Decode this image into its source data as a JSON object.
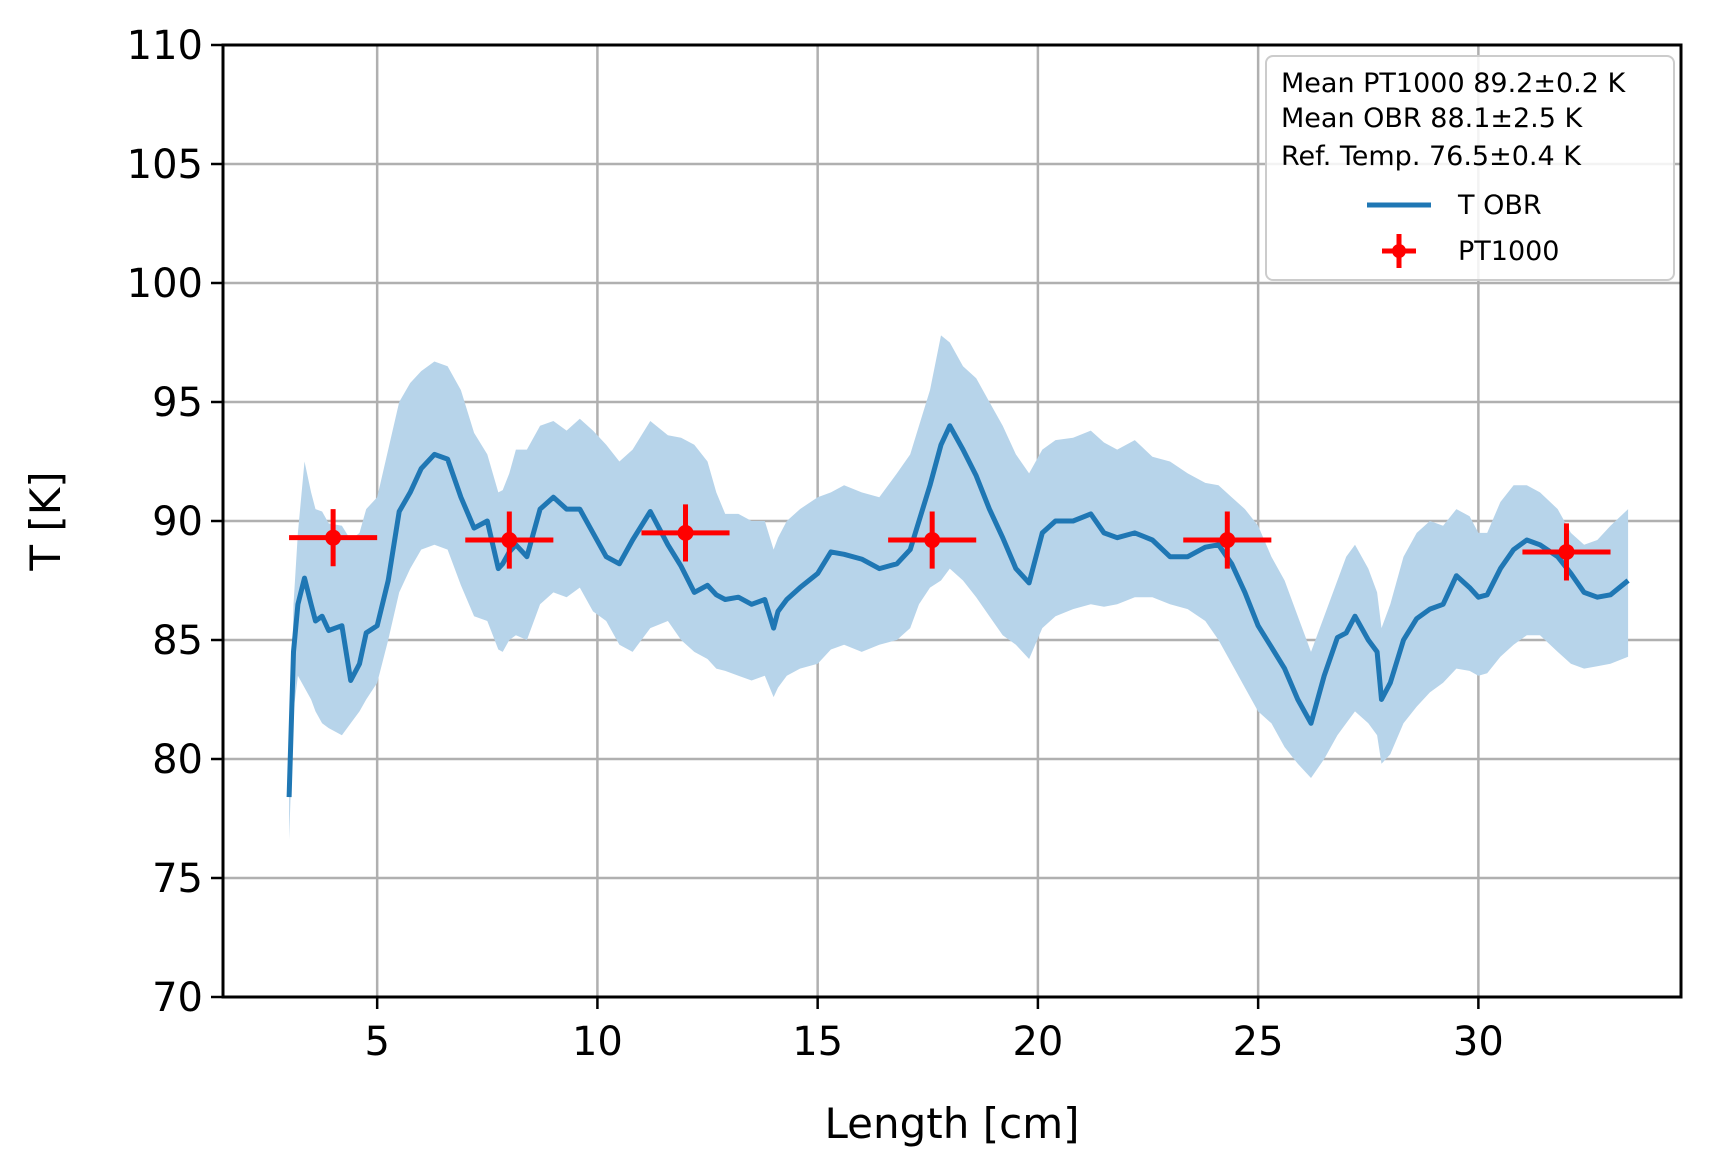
{
  "chart_data": {
    "type": "line",
    "title": "",
    "xlabel": "Length [cm]",
    "ylabel": "T [K]",
    "xlim": [
      1.5,
      34.6
    ],
    "ylim": [
      70,
      110
    ],
    "xticks": [
      5,
      10,
      15,
      20,
      25,
      30
    ],
    "yticks": [
      70,
      75,
      80,
      85,
      90,
      95,
      100,
      105,
      110
    ],
    "grid": true,
    "legend_position": "top-right",
    "annotations": [
      "Mean PT1000 89.2±0.2 K",
      "Mean OBR 88.1±2.5 K",
      "Ref. Temp. 76.5±0.4 K"
    ],
    "colors": {
      "obr_line": "#1f77b4",
      "obr_band": "#b7d4ea",
      "pt1000": "#ff0000",
      "grid": "#b0b0b0"
    },
    "series": [
      {
        "name": "T OBR",
        "kind": "line_with_band",
        "x": [
          3.0,
          3.1,
          3.2,
          3.35,
          3.5,
          3.6,
          3.75,
          3.9,
          4.2,
          4.4,
          4.6,
          4.75,
          5.0,
          5.25,
          5.5,
          5.75,
          6.0,
          6.3,
          6.6,
          6.9,
          7.2,
          7.5,
          7.75,
          7.85,
          8.0,
          8.15,
          8.4,
          8.7,
          9.0,
          9.3,
          9.6,
          9.9,
          10.2,
          10.5,
          10.8,
          11.2,
          11.6,
          11.9,
          12.2,
          12.5,
          12.7,
          12.9,
          13.2,
          13.5,
          13.8,
          14.0,
          14.1,
          14.3,
          14.6,
          15.0,
          15.3,
          15.6,
          16.0,
          16.4,
          16.8,
          17.1,
          17.3,
          17.55,
          17.8,
          18.0,
          18.3,
          18.6,
          18.9,
          19.2,
          19.5,
          19.8,
          20.1,
          20.4,
          20.8,
          21.2,
          21.5,
          21.8,
          22.2,
          22.6,
          23.0,
          23.4,
          23.8,
          24.1,
          24.4,
          24.7,
          25.0,
          25.3,
          25.6,
          25.9,
          26.2,
          26.5,
          26.8,
          27.0,
          27.2,
          27.5,
          27.7,
          27.8,
          28.0,
          28.3,
          28.6,
          28.9,
          29.2,
          29.5,
          29.8,
          30.0,
          30.2,
          30.5,
          30.8,
          31.1,
          31.4,
          31.8,
          32.1,
          32.4,
          32.7,
          33.0,
          33.4
        ],
        "y": [
          78.4,
          84.5,
          86.5,
          87.6,
          86.5,
          85.8,
          86.0,
          85.4,
          85.6,
          83.3,
          84.0,
          85.3,
          85.6,
          87.5,
          90.4,
          91.2,
          92.2,
          92.8,
          92.6,
          91.0,
          89.7,
          90.0,
          88.0,
          88.2,
          88.7,
          89.0,
          88.5,
          90.5,
          91.0,
          90.5,
          90.5,
          89.5,
          88.5,
          88.2,
          89.2,
          90.4,
          89.0,
          88.1,
          87.0,
          87.3,
          86.9,
          86.7,
          86.8,
          86.5,
          86.7,
          85.5,
          86.2,
          86.7,
          87.2,
          87.8,
          88.7,
          88.6,
          88.4,
          88.0,
          88.2,
          88.8,
          90.0,
          91.5,
          93.2,
          94.0,
          93.0,
          91.9,
          90.5,
          89.3,
          88.0,
          87.4,
          89.5,
          90.0,
          90.0,
          90.3,
          89.5,
          89.3,
          89.5,
          89.2,
          88.5,
          88.5,
          88.9,
          89.0,
          88.2,
          87.0,
          85.6,
          84.7,
          83.8,
          82.5,
          81.5,
          83.5,
          85.1,
          85.3,
          86.0,
          85.0,
          84.5,
          82.5,
          83.2,
          85.0,
          85.9,
          86.3,
          86.5,
          87.7,
          87.2,
          86.8,
          86.9,
          88.0,
          88.8,
          89.2,
          89.0,
          88.5,
          87.8,
          87.0,
          86.8,
          86.9,
          87.5
        ],
        "lower": [
          76.6,
          82.0,
          83.5,
          83.0,
          82.5,
          82.0,
          81.5,
          81.3,
          81.0,
          81.5,
          82.0,
          82.5,
          83.2,
          85.0,
          87.0,
          88.0,
          88.8,
          89.0,
          88.8,
          87.3,
          86.0,
          85.8,
          84.6,
          84.5,
          85.0,
          85.2,
          85.0,
          86.5,
          87.0,
          86.8,
          87.2,
          86.2,
          85.8,
          84.8,
          84.5,
          85.5,
          85.8,
          85.0,
          84.5,
          84.2,
          83.8,
          83.7,
          83.5,
          83.3,
          83.5,
          82.6,
          83.0,
          83.5,
          83.8,
          84.0,
          84.6,
          84.8,
          84.5,
          84.8,
          85.0,
          85.5,
          86.5,
          87.2,
          87.5,
          88.0,
          87.5,
          86.8,
          86.0,
          85.2,
          84.8,
          84.2,
          85.5,
          86.0,
          86.3,
          86.5,
          86.4,
          86.5,
          86.8,
          86.8,
          86.5,
          86.3,
          85.8,
          85.0,
          84.0,
          83.0,
          82.0,
          81.5,
          80.5,
          79.8,
          79.2,
          80.0,
          81.0,
          81.5,
          82.0,
          81.5,
          81.0,
          79.8,
          80.2,
          81.5,
          82.2,
          82.8,
          83.2,
          83.8,
          83.7,
          83.5,
          83.6,
          84.3,
          84.8,
          85.2,
          85.2,
          84.5,
          84.0,
          83.8,
          83.9,
          84.0,
          84.3
        ],
        "upper": [
          78.5,
          86.5,
          89.5,
          92.5,
          91.2,
          90.5,
          90.4,
          89.9,
          89.8,
          89.2,
          89.5,
          90.5,
          91.0,
          93.0,
          95.0,
          95.8,
          96.3,
          96.7,
          96.5,
          95.5,
          93.7,
          92.8,
          91.2,
          91.3,
          92.0,
          93.0,
          93.0,
          94.0,
          94.2,
          93.8,
          94.3,
          93.8,
          93.2,
          92.5,
          93.0,
          94.2,
          93.6,
          93.5,
          93.2,
          92.5,
          91.2,
          90.3,
          90.3,
          90.0,
          90.0,
          88.8,
          89.3,
          90.0,
          90.5,
          91.0,
          91.2,
          91.5,
          91.2,
          91.0,
          92.0,
          92.8,
          94.0,
          95.5,
          97.8,
          97.5,
          96.5,
          96.0,
          95.0,
          94.0,
          92.8,
          92.0,
          93.0,
          93.4,
          93.5,
          93.8,
          93.3,
          93.0,
          93.4,
          92.7,
          92.5,
          92.0,
          91.6,
          91.5,
          91.0,
          90.5,
          89.8,
          88.5,
          87.5,
          86.0,
          84.5,
          86.0,
          87.5,
          88.5,
          89.0,
          88.0,
          87.0,
          85.5,
          86.5,
          88.5,
          89.5,
          90.0,
          89.8,
          90.5,
          90.2,
          89.5,
          89.5,
          90.8,
          91.5,
          91.5,
          91.2,
          90.5,
          89.5,
          89.0,
          89.2,
          89.8,
          90.5
        ]
      },
      {
        "name": "PT1000",
        "kind": "errorbar",
        "x": [
          4.0,
          8.0,
          12.0,
          17.6,
          24.3,
          32.0
        ],
        "y": [
          89.3,
          89.2,
          89.5,
          89.2,
          89.2,
          88.7
        ],
        "xerr": [
          1.0,
          1.0,
          1.0,
          1.0,
          1.0,
          1.0
        ],
        "yerr": [
          1.2,
          1.2,
          1.2,
          1.2,
          1.2,
          1.2
        ]
      }
    ]
  }
}
